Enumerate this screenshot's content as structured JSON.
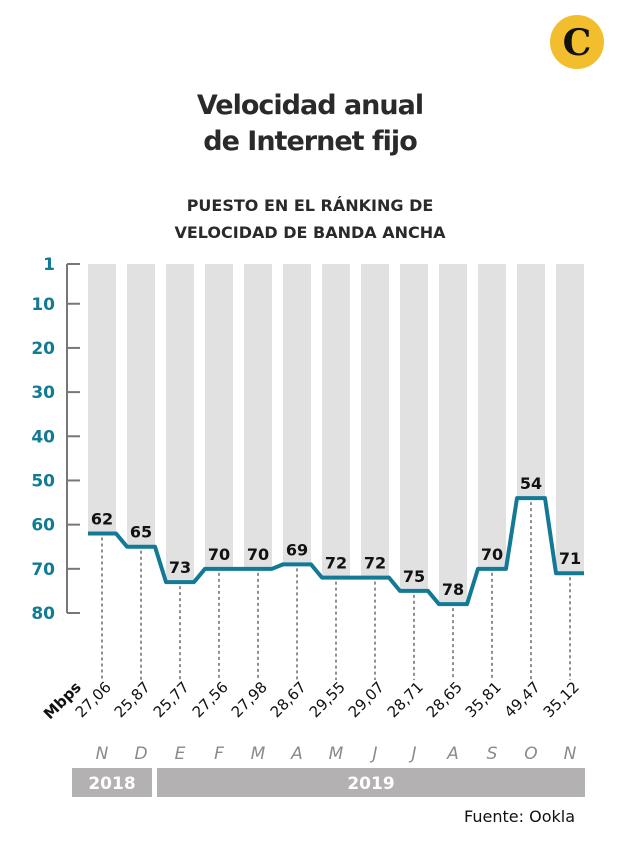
{
  "logo": {
    "letter": "C",
    "color": "#f2be2e"
  },
  "title": [
    "Velocidad anual",
    "de Internet fijo"
  ],
  "subtitle": [
    "PUESTO EN EL RÁNKING DE",
    "VELOCIDAD DE BANDA ANCHA"
  ],
  "source": "Fuente: Ookla",
  "colors": {
    "line": "#127a95",
    "bar": "#e1e1e1",
    "axis": "#777777",
    "year_band": "#b3b1b2",
    "month": "#8a8a8a"
  },
  "chart_data": {
    "type": "line",
    "title": "PUESTO EN EL RÁNKING DE VELOCIDAD DE BANDA ANCHA",
    "categories": [
      "N",
      "D",
      "E",
      "F",
      "M",
      "A",
      "M",
      "J",
      "J",
      "A",
      "S",
      "O",
      "N"
    ],
    "years": [
      {
        "label": "2018",
        "months": 2
      },
      {
        "label": "2019",
        "months": 11
      }
    ],
    "values": [
      62,
      65,
      73,
      70,
      70,
      69,
      72,
      72,
      75,
      78,
      70,
      54,
      71
    ],
    "speed_label": "Mbps",
    "speeds": [
      "27,06",
      "25,87",
      "25,77",
      "27,56",
      "27,98",
      "28,67",
      "29,55",
      "29,07",
      "28,71",
      "28,65",
      "35,81",
      "49,47",
      "35,12"
    ],
    "yticks": [
      1,
      10,
      20,
      30,
      40,
      50,
      60,
      70,
      80
    ],
    "ylim": [
      1,
      80
    ],
    "y_inverted": true,
    "grid": false
  }
}
